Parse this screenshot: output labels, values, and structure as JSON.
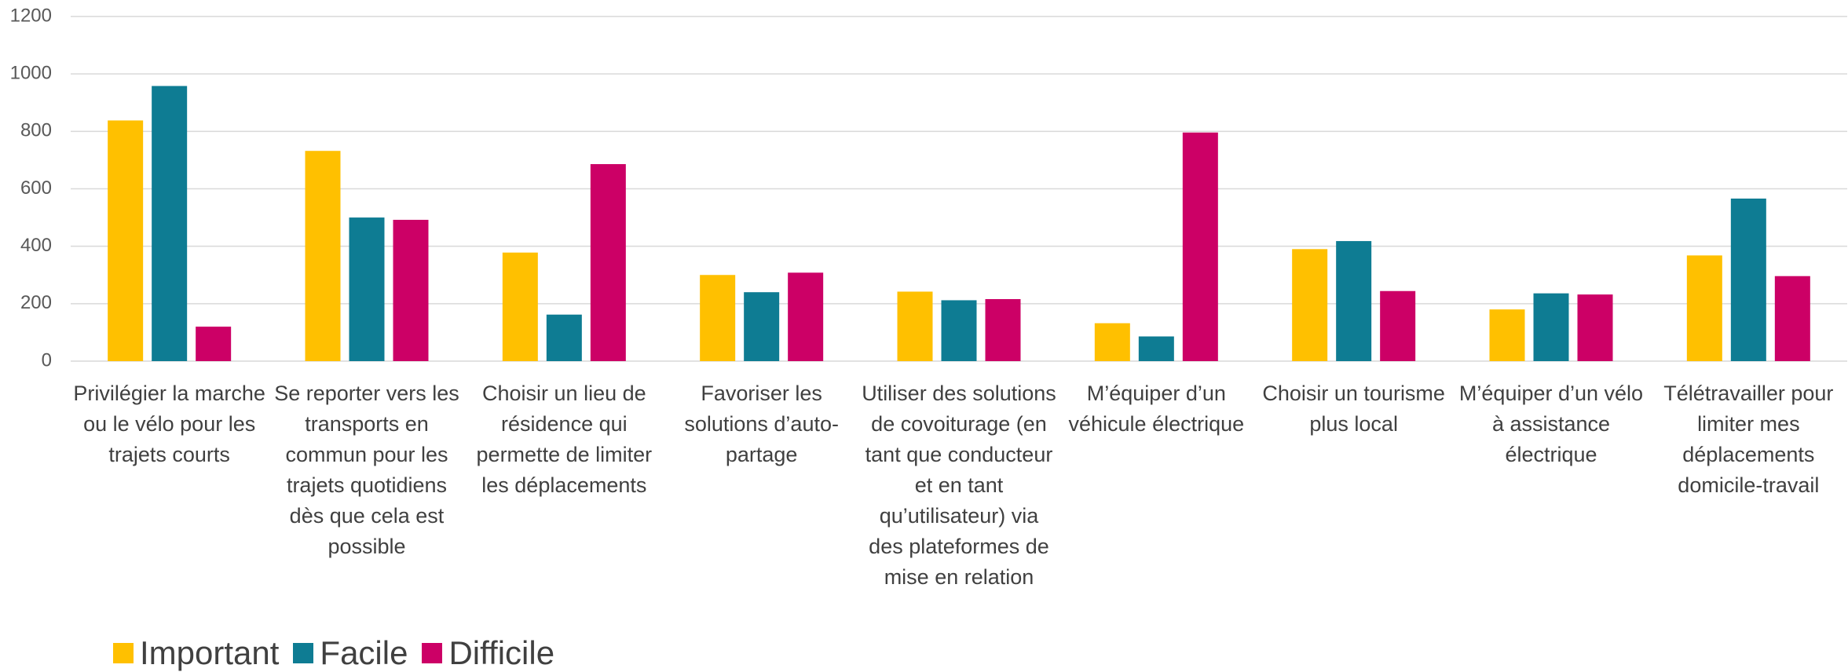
{
  "chart_data": {
    "type": "bar",
    "categories": [
      "Privilégier la marche ou le vélo pour les trajets courts",
      "Se reporter vers les transports en commun pour les trajets quotidiens dès que cela est possible",
      "Choisir un lieu de résidence qui permette de limiter les déplacements",
      "Favoriser les solutions d’auto-partage",
      "Utiliser des solutions de covoiturage (en tant que conducteur et en tant qu’utilisateur) via des plateformes de mise en relation",
      "M’équiper d’un véhicule électrique",
      "Choisir un tourisme plus local",
      "M’équiper d’un vélo à assistance électrique",
      "Télétravailler pour limiter mes déplacements domicile-travail"
    ],
    "series": [
      {
        "name": "Important",
        "color": "#ffc000",
        "values": [
          838,
          732,
          378,
          300,
          242,
          132,
          390,
          180,
          368
        ]
      },
      {
        "name": "Facile",
        "color": "#0e7c93",
        "values": [
          958,
          500,
          162,
          240,
          212,
          86,
          418,
          236,
          566
        ]
      },
      {
        "name": "Difficile",
        "color": "#cc0066",
        "values": [
          120,
          492,
          686,
          308,
          216,
          796,
          244,
          232,
          296
        ]
      }
    ],
    "ylim": [
      0,
      1200
    ],
    "yticks": [
      0,
      200,
      400,
      600,
      800,
      1000,
      1200
    ],
    "grid": true,
    "legend": "bottom-left"
  }
}
